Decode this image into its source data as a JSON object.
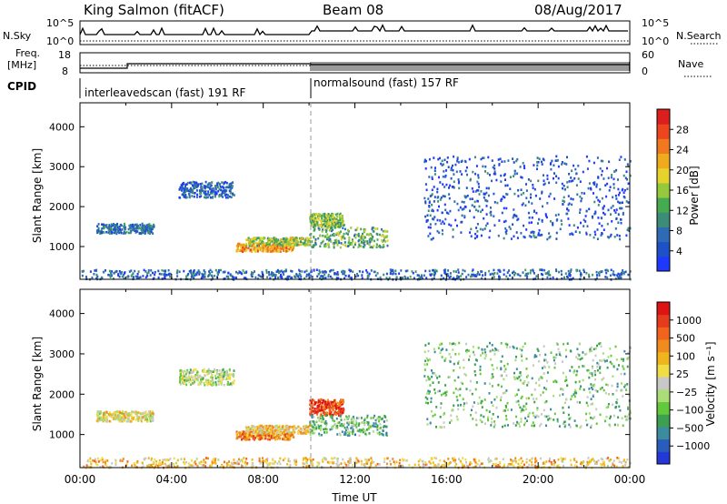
{
  "header": {
    "title": "King Salmon (fitACF)",
    "beam": "Beam 08",
    "date": "08/Aug/2017"
  },
  "strips": {
    "nsky_label": "N.Sky",
    "nsearch_label": "N.Search",
    "nsky_ticks": [
      "10^5",
      "10^0"
    ],
    "nsearch_ticks": [
      "10^5",
      "10^0"
    ],
    "freq_label_1": "Freq.",
    "freq_label_2": "[MHz]",
    "freq_ticks": [
      "18",
      "8"
    ],
    "nave_label": "Nave",
    "nave_ticks": [
      "60",
      "0"
    ],
    "cpid_label": "CPID",
    "cpid_segments": [
      {
        "name": "interleavedscan (fast) 191 RF",
        "start_hour": 0,
        "end_hour": 10
      },
      {
        "name": "normalsound (fast) 157 RF",
        "start_hour": 10,
        "end_hour": 24
      }
    ]
  },
  "chart_data": [
    {
      "type": "heatmap",
      "name": "power-panel",
      "xlabel": "",
      "ylabel": "Slant Range [km]",
      "xlim": [
        0,
        24
      ],
      "ylim": [
        180,
        4600
      ],
      "yticks": [
        "1000",
        "2000",
        "3000",
        "4000"
      ],
      "colorbar_label": "Power [dB]",
      "colorbar_ticks": [
        "4",
        "8",
        "12",
        "16",
        "20",
        "24",
        "28"
      ],
      "colorbar_colors": [
        "#1e38ff",
        "#1e50c8",
        "#2e6bb4",
        "#3c8c78",
        "#46aa50",
        "#96c83c",
        "#e6d22d",
        "#f0aa1e",
        "#f0781e",
        "#ec461e",
        "#dc1e1e"
      ],
      "echo_regions": [
        {
          "t0": 0.7,
          "t1": 3.2,
          "r0": 1350,
          "r1": 1600,
          "level": 0.22
        },
        {
          "t0": 4.3,
          "t1": 6.7,
          "r0": 2250,
          "r1": 2650,
          "level": 0.2
        },
        {
          "t0": 6.8,
          "t1": 9.3,
          "r0": 900,
          "r1": 1100,
          "level": 0.72
        },
        {
          "t0": 7.2,
          "t1": 10.0,
          "r0": 1050,
          "r1": 1250,
          "level": 0.5
        },
        {
          "t0": 10.0,
          "t1": 11.5,
          "r0": 1500,
          "r1": 1850,
          "level": 0.45
        },
        {
          "t0": 10.0,
          "t1": 13.4,
          "r0": 1000,
          "r1": 1500,
          "level": 0.4
        },
        {
          "t0": 15.0,
          "t1": 24.0,
          "r0": 1200,
          "r1": 3300,
          "level": 0.15
        },
        {
          "t0": 0.0,
          "t1": 24.0,
          "r0": 200,
          "r1": 450,
          "level": 0.2
        }
      ]
    },
    {
      "type": "heatmap",
      "name": "velocity-panel",
      "xlabel": "Time UT",
      "ylabel": "Slant Range [km]",
      "xlim": [
        0,
        24
      ],
      "ylim": [
        180,
        4600
      ],
      "xticks": [
        "00:00",
        "04:00",
        "08:00",
        "12:00",
        "16:00",
        "20:00",
        "00:00"
      ],
      "yticks": [
        "1000",
        "2000",
        "3000",
        "4000"
      ],
      "colorbar_label": "Velocity [m s⁻¹]",
      "colorbar_ticks": [
        "1000",
        "500",
        "100",
        "25",
        "−25",
        "−100",
        "−500",
        "−1000"
      ],
      "colorbar_colors": [
        "#2438d8",
        "#2a5cbc",
        "#3c8ca0",
        "#3ca050",
        "#64c83c",
        "#aadc78",
        "#c8c8c8",
        "#f0dc46",
        "#f0b41e",
        "#f08c1e",
        "#f0641e",
        "#e63c1e",
        "#dc1414"
      ],
      "echo_regions": [
        {
          "t0": 0.7,
          "t1": 3.2,
          "r0": 1350,
          "r1": 1600,
          "level": 0.55
        },
        {
          "t0": 4.3,
          "t1": 6.7,
          "r0": 2250,
          "r1": 2650,
          "level": 0.45
        },
        {
          "t0": 6.8,
          "t1": 9.3,
          "r0": 900,
          "r1": 1100,
          "level": 0.75
        },
        {
          "t0": 7.2,
          "t1": 10.0,
          "r0": 1050,
          "r1": 1250,
          "level": 0.6
        },
        {
          "t0": 10.0,
          "t1": 11.5,
          "r0": 1500,
          "r1": 1900,
          "level": 0.88
        },
        {
          "t0": 10.0,
          "t1": 13.4,
          "r0": 1000,
          "r1": 1500,
          "level": 0.32
        },
        {
          "t0": 15.0,
          "t1": 24.0,
          "r0": 1200,
          "r1": 3300,
          "level": 0.35
        },
        {
          "t0": 0.0,
          "t1": 24.0,
          "r0": 200,
          "r1": 450,
          "level": 0.62
        }
      ]
    }
  ]
}
